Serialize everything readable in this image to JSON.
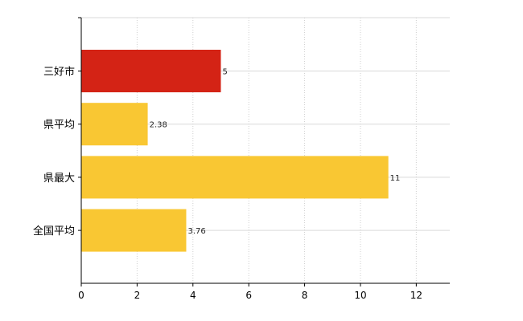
{
  "chart_data": {
    "type": "bar",
    "orientation": "horizontal",
    "categories": [
      "三好市",
      "県平均",
      "県最大",
      "全国平均"
    ],
    "values": [
      5,
      2.38,
      11,
      3.76
    ],
    "data_labels": [
      "5",
      "2.38",
      "11",
      "3.76"
    ],
    "bar_colors": [
      "#d42315",
      "#f9c733",
      "#f9c733",
      "#f9c733"
    ],
    "title": "",
    "xlabel": "",
    "ylabel": "",
    "xlim": [
      0,
      13.2
    ],
    "x_ticks": [
      "0",
      "2",
      "4",
      "6",
      "8",
      "10",
      "12"
    ],
    "grid": true,
    "legend": "none"
  }
}
